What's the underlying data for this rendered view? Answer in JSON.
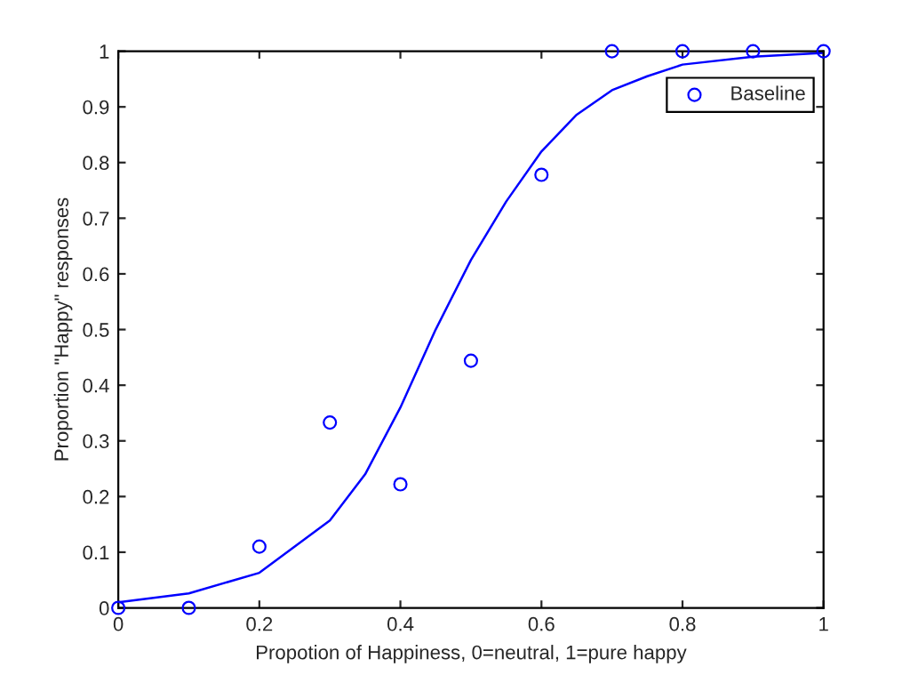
{
  "chart_data": {
    "type": "scatter",
    "xlabel": "Propotion of Happiness, 0=neutral, 1=pure happy",
    "ylabel": "Proportion \"Happy\" responses",
    "series": [
      {
        "name": "Baseline",
        "color": "#0000ff",
        "marker": "circle",
        "x": [
          0,
          0.1,
          0.2,
          0.3,
          0.4,
          0.5,
          0.6,
          0.7,
          0.8,
          0.9,
          1
        ],
        "values": [
          0,
          0,
          0.11,
          0.333,
          0.222,
          0.444,
          0.778,
          1,
          1,
          1,
          1
        ]
      },
      {
        "type": "line",
        "color": "#0000ff",
        "marker": "none",
        "line_style": "solid",
        "x": [
          0,
          0.1,
          0.2,
          0.3,
          0.35,
          0.4,
          0.45,
          0.5,
          0.55,
          0.6,
          0.65,
          0.7,
          0.75,
          0.8,
          0.9,
          1
        ],
        "values": [
          0.01,
          0.026,
          0.063,
          0.157,
          0.24,
          0.36,
          0.5,
          0.625,
          0.73,
          0.82,
          0.886,
          0.93,
          0.955,
          0.976,
          0.99,
          0.997
        ]
      }
    ],
    "xlim": [
      0,
      1
    ],
    "ylim": [
      0,
      1
    ],
    "xticks": [
      0,
      0.2,
      0.4,
      0.6,
      0.8,
      1
    ],
    "yticks": [
      0,
      0.1,
      0.2,
      0.3,
      0.4,
      0.5,
      0.6,
      0.7,
      0.8,
      0.9,
      1
    ],
    "grid": false,
    "legend": "top right"
  }
}
